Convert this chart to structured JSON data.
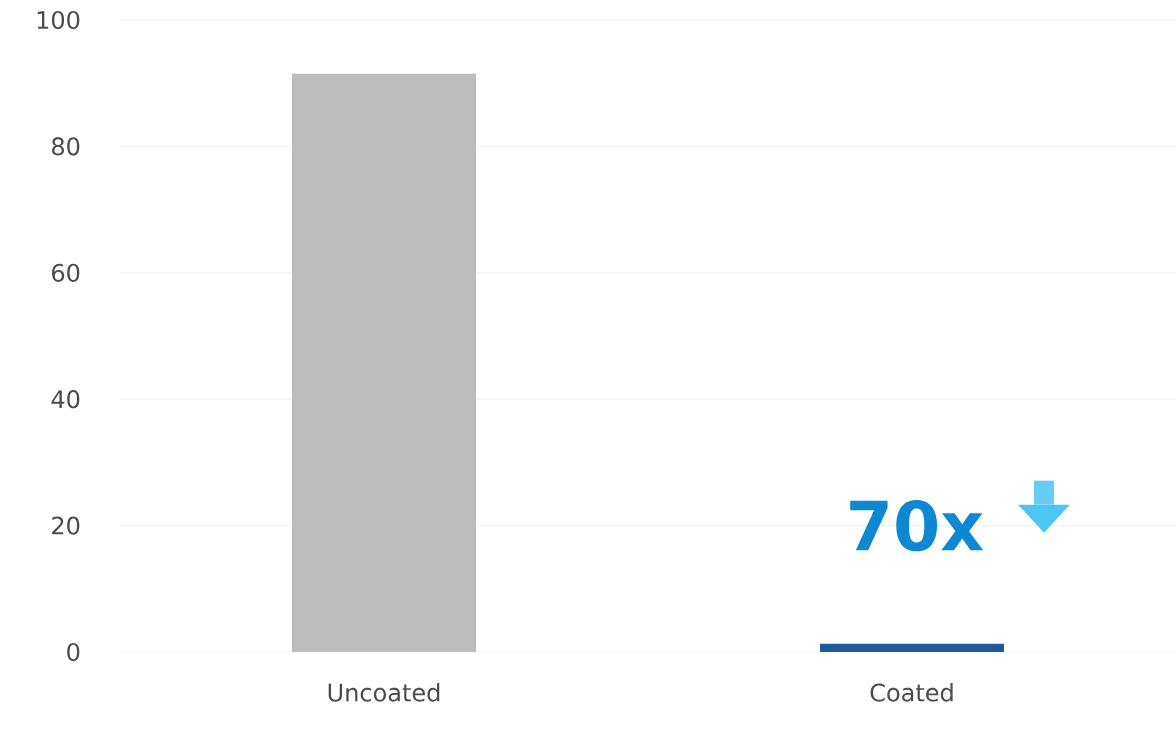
{
  "chart_data": {
    "type": "bar",
    "categories": [
      "Uncoated",
      "Coated"
    ],
    "values": [
      91.5,
      1.3
    ],
    "colors": [
      "#bdbdbd",
      "#1d5c9c"
    ],
    "ylim": [
      0,
      100
    ],
    "yticks": [
      0,
      20,
      40,
      60,
      80,
      100
    ],
    "grid": "y",
    "annotations": [
      "70x"
    ]
  }
}
